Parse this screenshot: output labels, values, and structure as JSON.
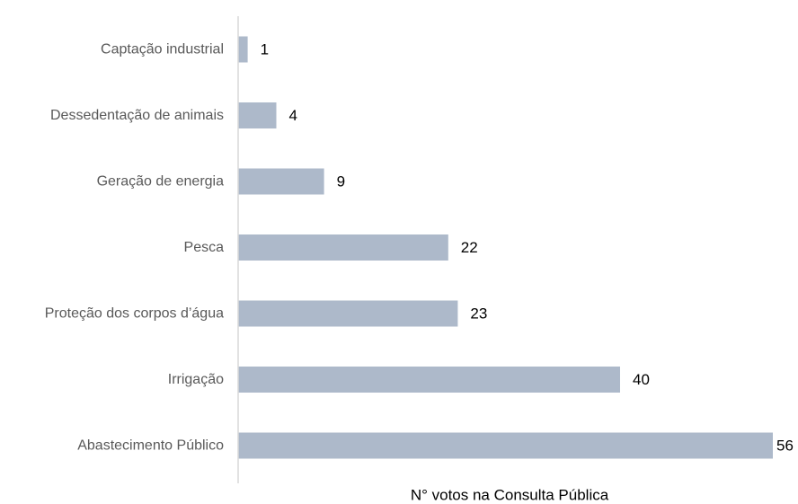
{
  "chart_data": {
    "type": "bar",
    "orientation": "horizontal",
    "categories": [
      "Captação industrial",
      "Dessedentação de animais",
      "Geração de energia",
      "Pesca",
      "Proteção dos corpos d’água",
      "Irrigação",
      "Abastecimento Público"
    ],
    "values": [
      1,
      4,
      9,
      22,
      23,
      40,
      56
    ],
    "xlabel": "N° votos na Consulta Pública",
    "ylabel": "",
    "xlim": [
      0,
      56
    ],
    "grid": false,
    "legend": "none",
    "bar_color": "#adb9ca",
    "axis_color": "#d9d9d9"
  }
}
